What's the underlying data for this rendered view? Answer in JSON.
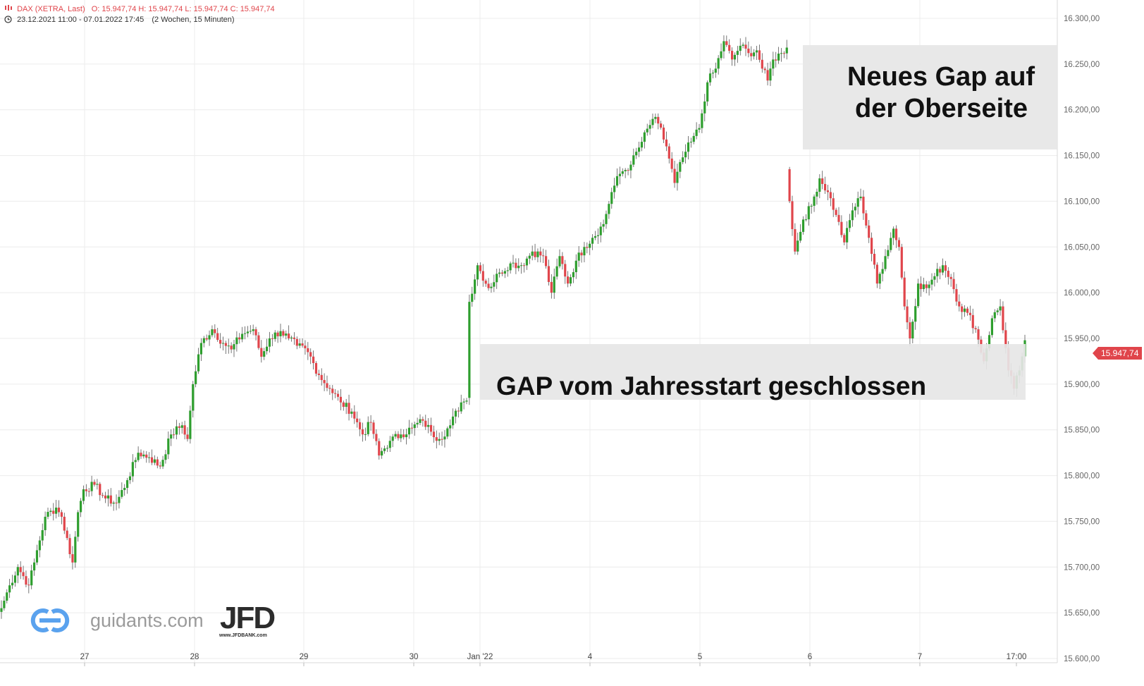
{
  "header": {
    "instrument": "DAX (XETRA, Last)",
    "ohlc": "O: 15.947,74  H: 15.947,74  L: 15.947,74  C: 15.947,74",
    "range": "23.12.2021 11:00 - 07.01.2022 17:45",
    "interval": "(2 Wochen, 15 Minuten)"
  },
  "annotations": {
    "top_box_line1": "Neues Gap auf",
    "top_box_line2": "der Oberseite",
    "bottom_box": "GAP vom Jahresstart geschlossen"
  },
  "price_tag": "15.947,74",
  "branding": {
    "site": "guidants.com",
    "partner": "JFD",
    "partner_sub": "www.JFDBANK.com"
  },
  "colors": {
    "up": "#2e9e2e",
    "down": "#e0454b",
    "grid": "#ececec",
    "annotation_bg": "#e6e6e6",
    "price_tag_bg": "#e0454b"
  },
  "chart_data": {
    "type": "candlestick",
    "y_ticks": [
      "15.600,00",
      "15.650,00",
      "15.700,00",
      "15.750,00",
      "15.800,00",
      "15.850,00",
      "15.900,00",
      "15.950,00",
      "16.000,00",
      "16.050,00",
      "16.100,00",
      "16.150,00",
      "16.200,00",
      "16.250,00",
      "16.300,00"
    ],
    "ylim": [
      15600,
      16300
    ],
    "x_labels": [
      "27",
      "28",
      "29",
      "30",
      "Jan '22",
      "4",
      "5",
      "6",
      "7",
      "17:00"
    ],
    "grid": true,
    "anchors": [
      [
        0,
        15655
      ],
      [
        3,
        15680
      ],
      [
        6,
        15700
      ],
      [
        10,
        15680
      ],
      [
        12,
        15705
      ],
      [
        16,
        15755
      ],
      [
        20,
        15765
      ],
      [
        22,
        15755
      ],
      [
        26,
        15705
      ],
      [
        28,
        15760
      ],
      [
        30,
        15785
      ],
      [
        34,
        15790
      ],
      [
        38,
        15775
      ],
      [
        42,
        15770
      ],
      [
        46,
        15795
      ],
      [
        50,
        15825
      ],
      [
        54,
        15820
      ],
      [
        58,
        15810
      ],
      [
        62,
        15845
      ],
      [
        66,
        15855
      ],
      [
        68,
        15840
      ],
      [
        70,
        15900
      ],
      [
        73,
        15945
      ],
      [
        77,
        15960
      ],
      [
        81,
        15945
      ],
      [
        84,
        15938
      ],
      [
        88,
        15955
      ],
      [
        92,
        15960
      ],
      [
        95,
        15930
      ],
      [
        98,
        15950
      ],
      [
        102,
        15958
      ],
      [
        105,
        15950
      ],
      [
        108,
        15942
      ],
      [
        112,
        15935
      ],
      [
        116,
        15910
      ],
      [
        120,
        15895
      ],
      [
        124,
        15880
      ],
      [
        128,
        15870
      ],
      [
        132,
        15845
      ],
      [
        135,
        15858
      ],
      [
        138,
        15822
      ],
      [
        142,
        15838
      ],
      [
        146,
        15845
      ],
      [
        150,
        15852
      ],
      [
        154,
        15860
      ],
      [
        157,
        15848
      ],
      [
        160,
        15840
      ],
      [
        164,
        15855
      ],
      [
        168,
        15880
      ],
      [
        170,
        15882
      ],
      [
        171,
        15990
      ],
      [
        174,
        16030
      ],
      [
        178,
        16005
      ],
      [
        182,
        16022
      ],
      [
        186,
        16032
      ],
      [
        190,
        16030
      ],
      [
        194,
        16045
      ],
      [
        198,
        16040
      ],
      [
        201,
        16000
      ],
      [
        204,
        16040
      ],
      [
        207,
        16010
      ],
      [
        210,
        16035
      ],
      [
        213,
        16050
      ],
      [
        216,
        16060
      ],
      [
        220,
        16075
      ],
      [
        223,
        16110
      ],
      [
        226,
        16130
      ],
      [
        230,
        16140
      ],
      [
        234,
        16165
      ],
      [
        238,
        16190
      ],
      [
        240,
        16185
      ],
      [
        243,
        16160
      ],
      [
        246,
        16120
      ],
      [
        249,
        16148
      ],
      [
        252,
        16165
      ],
      [
        255,
        16180
      ],
      [
        258,
        16230
      ],
      [
        261,
        16245
      ],
      [
        264,
        16275
      ],
      [
        267,
        16255
      ],
      [
        270,
        16270
      ],
      [
        273,
        16262
      ],
      [
        276,
        16265
      ],
      [
        278,
        16245
      ],
      [
        280,
        16232
      ],
      [
        282,
        16255
      ],
      [
        285,
        16262
      ],
      [
        287,
        16268
      ],
      [
        288,
        16100
      ],
      [
        290,
        16045
      ],
      [
        293,
        16080
      ],
      [
        296,
        16095
      ],
      [
        299,
        16125
      ],
      [
        302,
        16110
      ],
      [
        305,
        16085
      ],
      [
        308,
        16055
      ],
      [
        311,
        16090
      ],
      [
        314,
        16105
      ],
      [
        317,
        16060
      ],
      [
        320,
        16010
      ],
      [
        323,
        16040
      ],
      [
        326,
        16070
      ],
      [
        328,
        16050
      ],
      [
        330,
        15985
      ],
      [
        332,
        15950
      ],
      [
        335,
        16010
      ],
      [
        338,
        16005
      ],
      [
        341,
        16018
      ],
      [
        344,
        16030
      ],
      [
        347,
        16015
      ],
      [
        350,
        15985
      ],
      [
        353,
        15978
      ],
      [
        356,
        15960
      ],
      [
        359,
        15925
      ],
      [
        362,
        15972
      ],
      [
        365,
        15985
      ],
      [
        368,
        15915
      ],
      [
        370,
        15895
      ],
      [
        372,
        15915
      ],
      [
        374,
        15948
      ]
    ]
  }
}
